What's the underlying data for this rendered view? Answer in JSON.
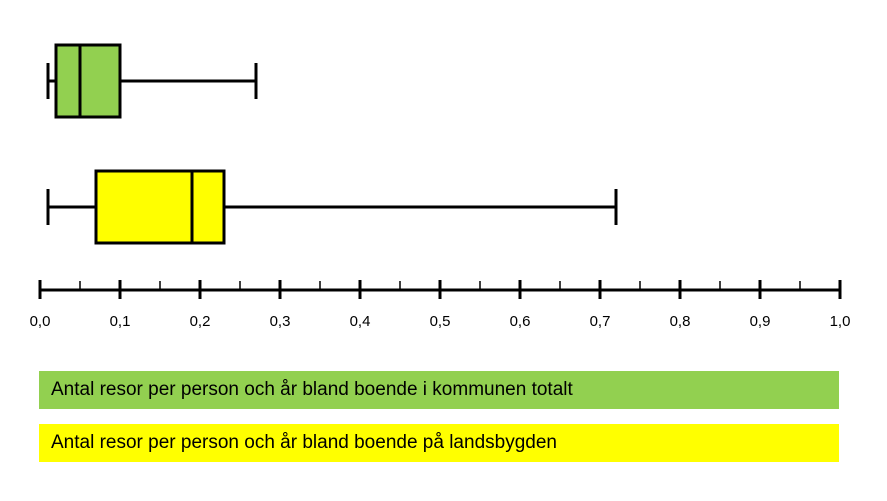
{
  "chart_data": {
    "type": "boxplot",
    "orientation": "horizontal",
    "xlim": [
      0.0,
      1.0
    ],
    "major_ticks": [
      0.0,
      0.1,
      0.2,
      0.3,
      0.4,
      0.5,
      0.6,
      0.7,
      0.8,
      0.9,
      1.0
    ],
    "tick_labels": [
      "0,0",
      "0,1",
      "0,2",
      "0,3",
      "0,4",
      "0,5",
      "0,6",
      "0,7",
      "0,8",
      "0,9",
      "1,0"
    ],
    "minor_ticks": [
      0.05,
      0.15,
      0.25,
      0.35,
      0.45,
      0.55,
      0.65,
      0.75,
      0.85,
      0.95
    ],
    "grid": false,
    "legend_position": "bottom",
    "series": [
      {
        "name": "Antal resor per person och år bland boende i kommunen totalt",
        "color": "#92d050",
        "min": 0.01,
        "q1": 0.02,
        "median": 0.05,
        "q3": 0.1,
        "max": 0.27
      },
      {
        "name": "Antal resor per person och år bland boende på landsbygden",
        "color": "#ffff00",
        "min": 0.01,
        "q1": 0.07,
        "median": 0.19,
        "q3": 0.23,
        "max": 0.72
      }
    ]
  }
}
